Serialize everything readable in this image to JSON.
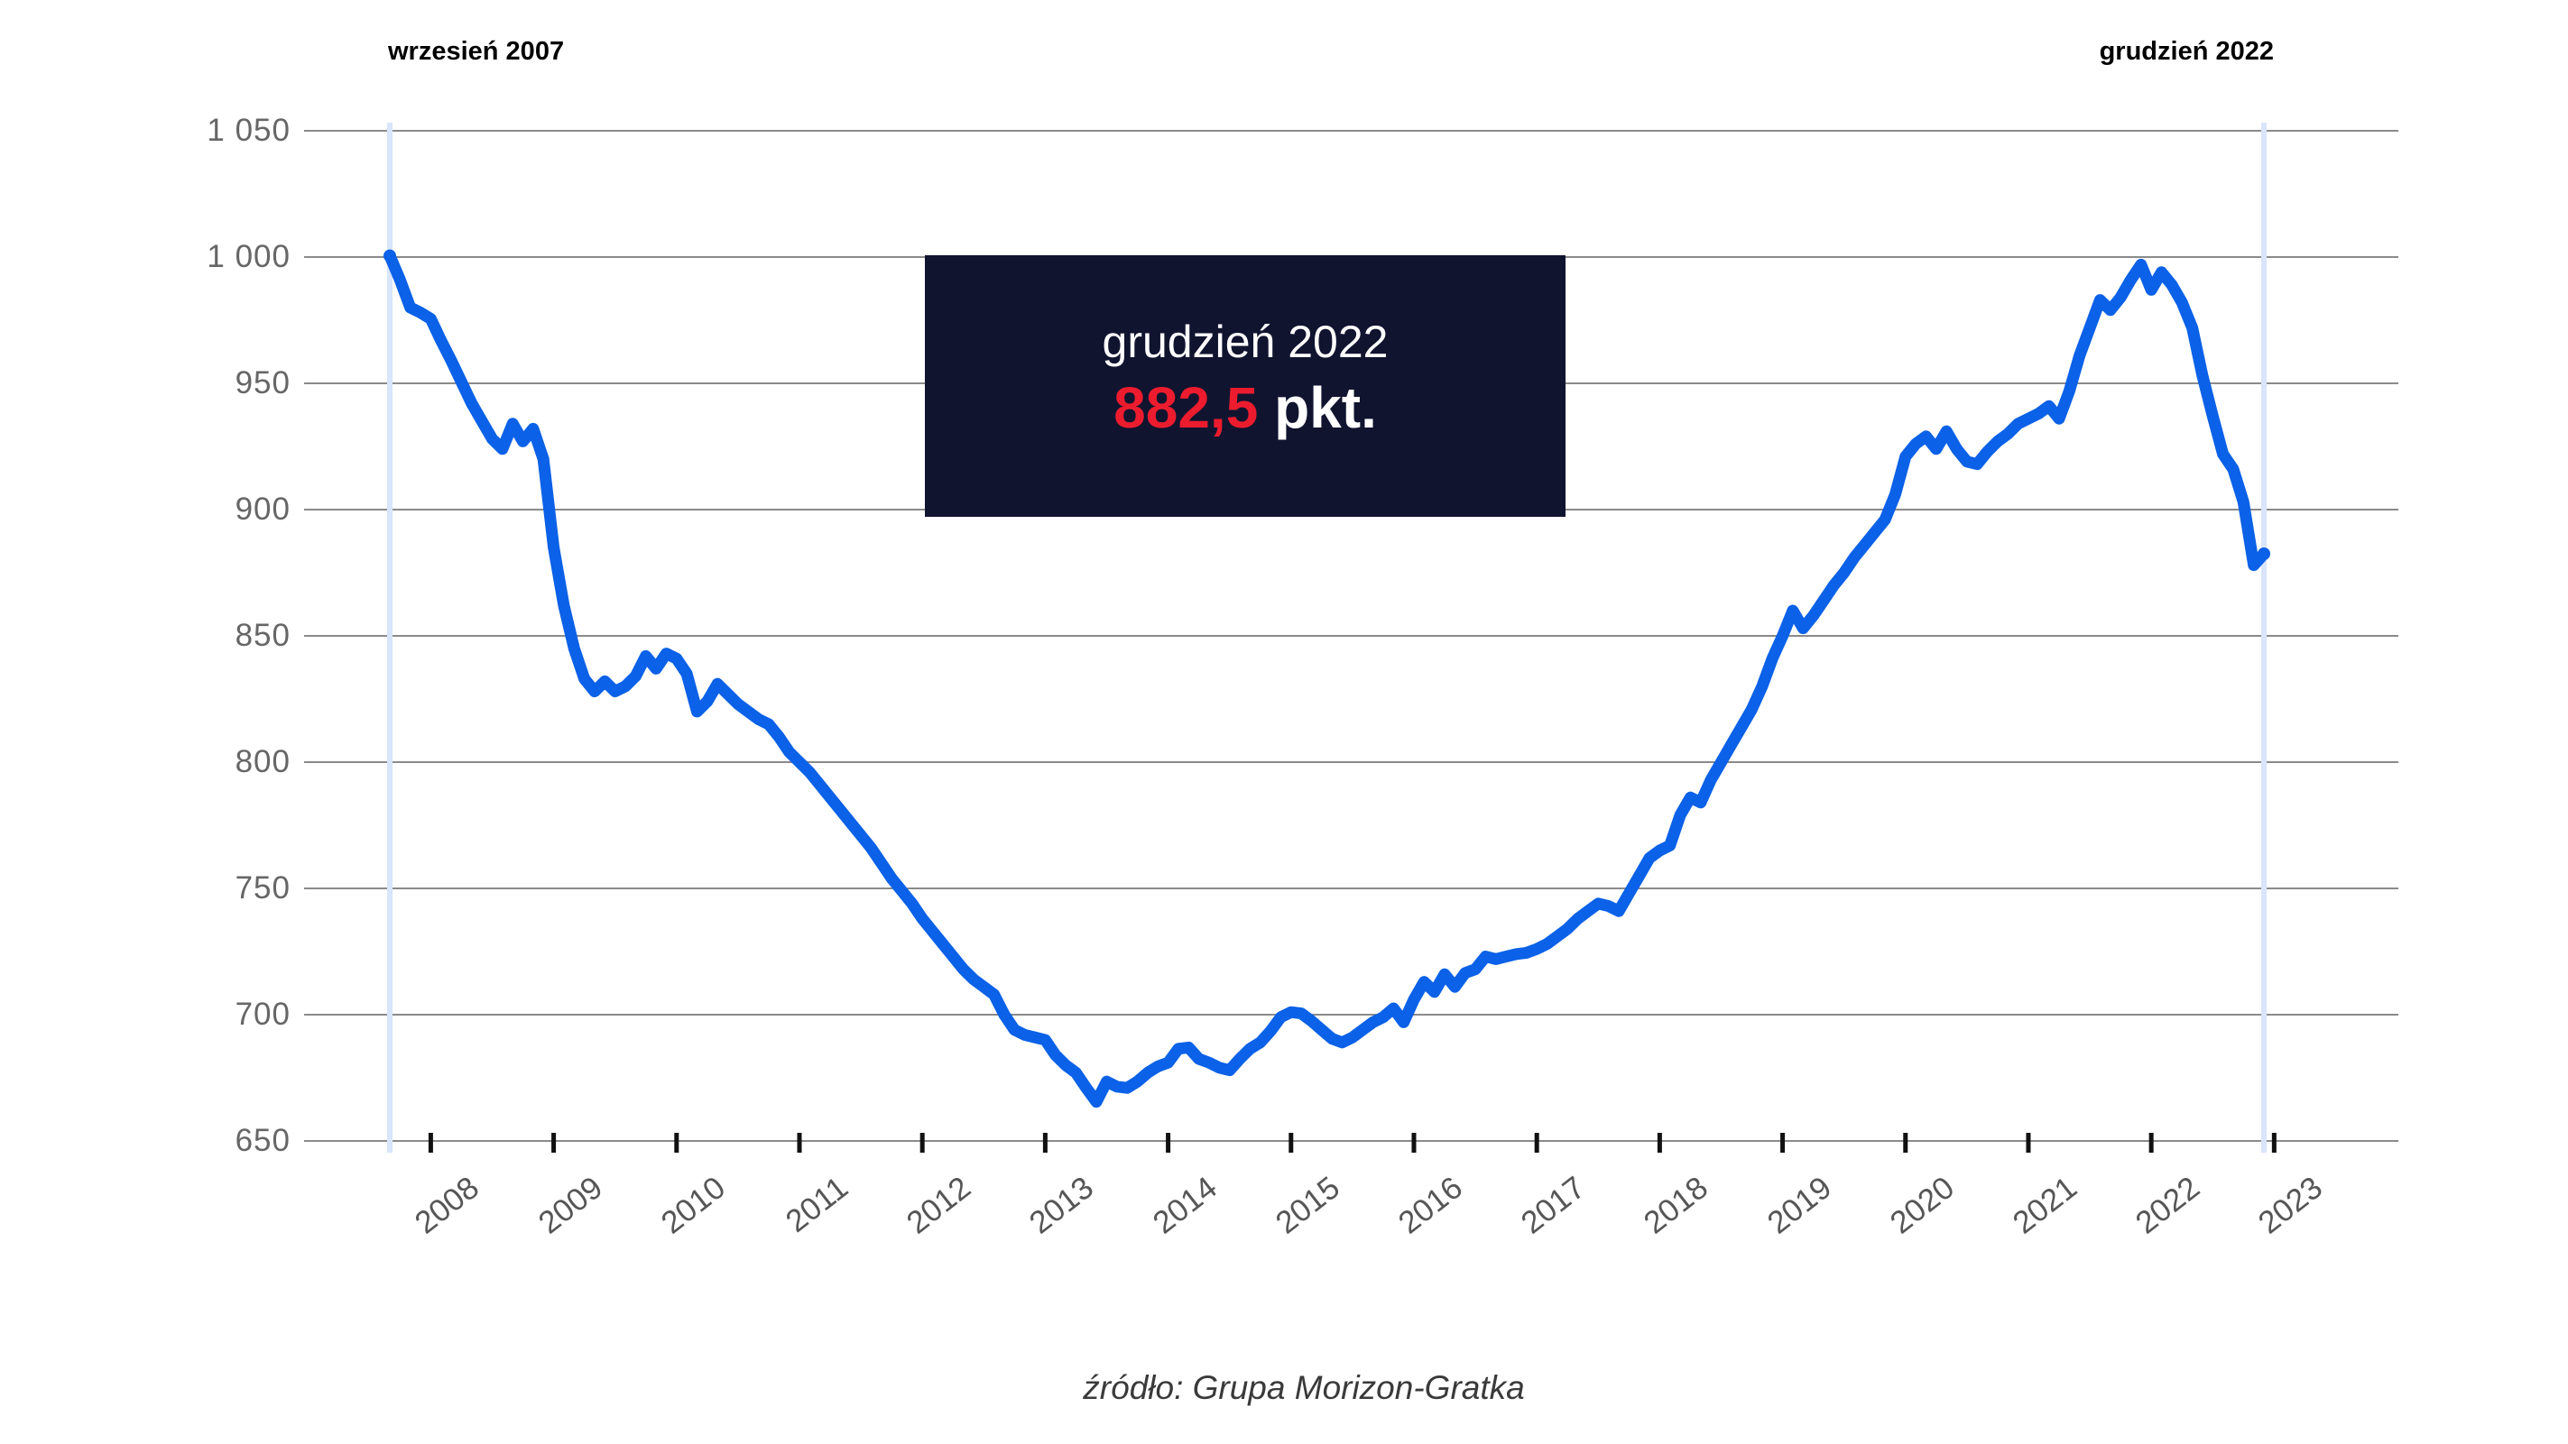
{
  "annotations": {
    "start_label": "wrzesień 2007",
    "end_label": "grudzień 2022"
  },
  "callout": {
    "title": "grudzień 2022",
    "value": "882,5",
    "unit": " pkt."
  },
  "footer": {
    "source": "źródło: Grupa Morizon-Gratka"
  },
  "colors": {
    "line": "#0b61e7",
    "grid": "#8a8a8a",
    "tick": "#111111",
    "y_label": "#666666",
    "x_label": "#565656",
    "annotation": "#000000",
    "date_marker": "#d9e5fa",
    "callout_bg": "#10142f",
    "callout_text": "#ffffff",
    "callout_value": "#ec1c2e",
    "footer": "#3a3a3a",
    "background": "#ffffff"
  },
  "chart_data": {
    "type": "line",
    "title": "",
    "unit": "pkt.",
    "frequency": "monthly",
    "x_start_label": "wrzesień 2007",
    "x_end_label": "grudzień 2022",
    "final_value": 882.5,
    "ylim": [
      650,
      1050
    ],
    "grid": true,
    "legend": false,
    "y_ticks": [
      650,
      700,
      750,
      800,
      850,
      900,
      950,
      1000,
      1050
    ],
    "y_tick_labels": [
      "650",
      "700",
      "750",
      "800",
      "850",
      "900",
      "950",
      "1 000",
      "1 050"
    ],
    "x_tick_years": [
      2008,
      2009,
      2010,
      2011,
      2012,
      2013,
      2014,
      2015,
      2016,
      2017,
      2018,
      2019,
      2020,
      2021,
      2022,
      2023
    ],
    "x_tick_labels": [
      "2008",
      "2009",
      "2010",
      "2011",
      "2012",
      "2013",
      "2014",
      "2015",
      "2016",
      "2017",
      "2018",
      "2019",
      "2020",
      "2021",
      "2022",
      "2023"
    ],
    "values": [
      1000.5,
      991,
      980,
      978,
      975.5,
      967,
      959,
      950.5,
      942,
      935,
      928,
      924,
      934,
      927,
      932,
      920,
      885,
      862,
      845,
      833,
      828,
      832,
      828,
      830,
      834,
      842,
      837,
      843,
      841,
      835,
      820,
      824,
      831,
      827,
      823,
      820,
      817,
      815,
      810,
      804,
      800,
      796,
      791,
      786,
      781,
      776,
      771,
      766,
      760,
      754,
      749,
      744,
      738,
      733,
      728,
      723,
      718,
      714,
      711,
      708,
      700,
      694,
      692,
      691,
      690,
      684,
      680,
      677,
      671,
      665.5,
      673.5,
      671.5,
      671,
      673.5,
      677,
      679.5,
      681,
      686.5,
      687,
      682.5,
      681,
      679,
      678,
      682.5,
      686.5,
      689,
      693.5,
      699,
      701,
      700.5,
      697.5,
      694,
      690.5,
      689,
      691,
      694,
      697,
      699,
      702.5,
      697,
      706,
      713,
      709,
      716,
      711,
      716.5,
      718,
      723,
      722,
      723,
      724,
      724.5,
      726,
      728,
      731,
      734,
      738,
      741,
      744,
      743,
      741,
      748,
      755,
      762,
      765,
      767,
      779,
      786,
      784,
      793,
      800,
      807,
      814,
      821,
      830,
      841,
      850,
      860,
      853,
      858,
      864,
      870,
      875,
      881,
      886,
      891,
      896,
      906,
      921,
      926,
      929,
      924,
      931,
      924,
      919,
      918,
      923,
      927,
      930,
      934,
      936,
      938,
      941,
      936,
      947,
      961,
      972,
      983,
      979,
      984,
      991,
      997,
      987,
      994,
      989,
      982,
      972,
      953,
      937,
      922,
      916,
      903,
      878,
      882.5
    ],
    "layout": {
      "plot_left": 337,
      "plot_right": 2658,
      "y_top": 145,
      "y_bottom": 1265,
      "x_data_start": 432,
      "x_data_end": 2509,
      "marker_top": 136,
      "marker_bottom": 1278,
      "tick_top": 1256,
      "tick_height": 22,
      "tick_width": 5,
      "line_width": 13,
      "x_label_top": 1297,
      "x_label_anchor_offset": 37
    }
  }
}
